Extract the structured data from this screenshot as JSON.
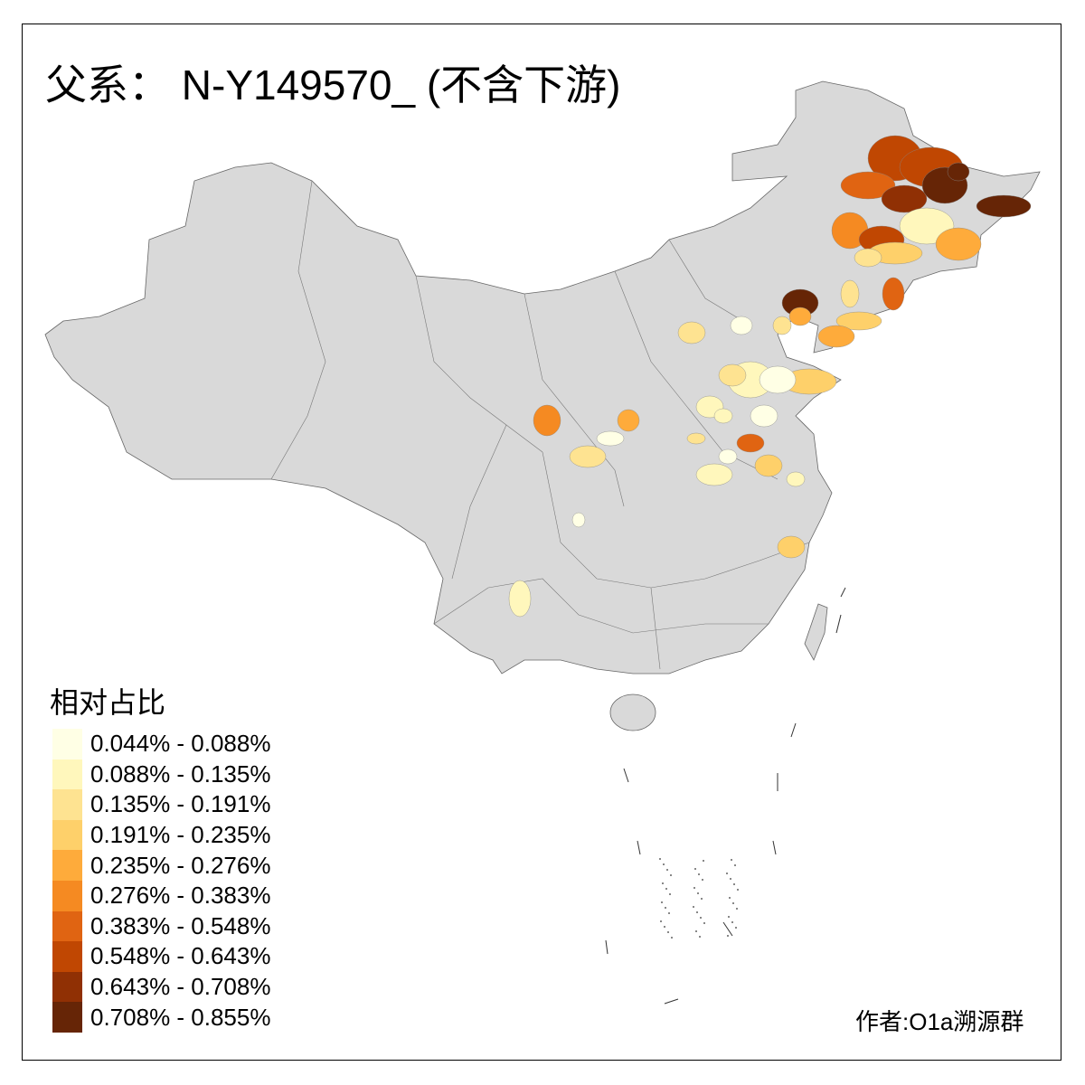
{
  "title": "父系： N-Y149570_ (不含下游)",
  "legend": {
    "title": "相对占比",
    "items": [
      {
        "label": "0.044% - 0.088%",
        "color": "#FFFFE5"
      },
      {
        "label": "0.088% - 0.135%",
        "color": "#FFF7BC"
      },
      {
        "label": "0.135% - 0.191%",
        "color": "#FEE391"
      },
      {
        "label": "0.191% - 0.235%",
        "color": "#FED06A"
      },
      {
        "label": "0.235% - 0.276%",
        "color": "#FEAB3B"
      },
      {
        "label": "0.276% - 0.383%",
        "color": "#F58A22"
      },
      {
        "label": "0.383% - 0.548%",
        "color": "#E06412"
      },
      {
        "label": "0.548% - 0.643%",
        "color": "#C04702"
      },
      {
        "label": "0.643% - 0.708%",
        "color": "#903004"
      },
      {
        "label": "0.708% - 0.855%",
        "color": "#662506"
      }
    ]
  },
  "base_color": "#D9D9D9",
  "author": "作者:O1a溯源群"
}
